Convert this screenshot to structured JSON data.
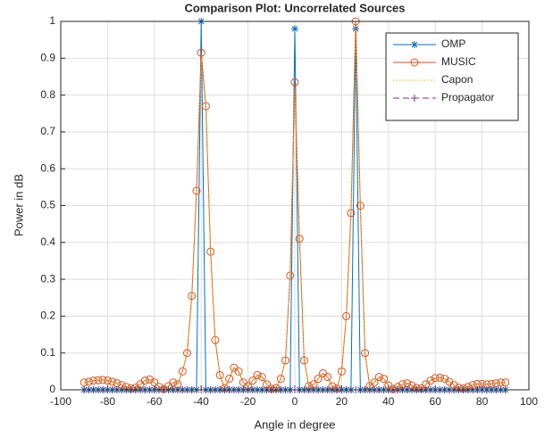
{
  "chart_data": {
    "type": "line",
    "title": "Comparison Plot: Uncorrelated Sources",
    "x_label": "Angle in degree",
    "y_label": "Power in dB",
    "x": [
      -90,
      -88,
      -86,
      -84,
      -82,
      -80,
      -78,
      -76,
      -74,
      -72,
      -70,
      -68,
      -66,
      -64,
      -62,
      -60,
      -58,
      -56,
      -54,
      -52,
      -50,
      -48,
      -46,
      -44,
      -42,
      -40,
      -38,
      -36,
      -34,
      -32,
      -30,
      -28,
      -26,
      -24,
      -22,
      -20,
      -18,
      -16,
      -14,
      -12,
      -10,
      -8,
      -6,
      -4,
      -2,
      0,
      2,
      4,
      6,
      8,
      10,
      12,
      14,
      16,
      18,
      20,
      22,
      24,
      26,
      28,
      30,
      32,
      34,
      36,
      38,
      40,
      42,
      44,
      46,
      48,
      50,
      52,
      54,
      56,
      58,
      60,
      62,
      64,
      66,
      68,
      70,
      72,
      74,
      76,
      78,
      80,
      82,
      84,
      86,
      88,
      90
    ],
    "series": [
      {
        "name": "OMP",
        "color": "#0072BD",
        "marker": "star",
        "linestyle": "solid",
        "values": [
          0,
          0,
          0,
          0,
          0,
          0,
          0,
          0,
          0,
          0,
          0,
          0,
          0,
          0,
          0,
          0,
          0,
          0,
          0,
          0,
          0,
          0,
          0,
          0,
          0,
          1,
          0,
          0,
          0,
          0,
          0,
          0,
          0,
          0,
          0,
          0,
          0,
          0,
          0,
          0,
          0,
          0,
          0,
          0,
          0,
          0.98,
          0,
          0,
          0,
          0,
          0,
          0,
          0,
          0,
          0,
          0,
          0,
          0,
          0.98,
          0,
          0,
          0,
          0,
          0,
          0,
          0,
          0,
          0,
          0,
          0,
          0,
          0,
          0,
          0,
          0,
          0,
          0,
          0,
          0,
          0,
          0,
          0,
          0,
          0,
          0,
          0,
          0,
          0,
          0,
          0,
          0
        ]
      },
      {
        "name": "MUSIC",
        "color": "#D95319",
        "marker": "circle",
        "linestyle": "solid",
        "values": [
          0.02,
          0.022,
          0.025,
          0.026,
          0.027,
          0.025,
          0.022,
          0.018,
          0.013,
          0.008,
          0.004,
          0.006,
          0.015,
          0.025,
          0.028,
          0.02,
          0.008,
          0.002,
          0.01,
          0.02,
          0.015,
          0.05,
          0.1,
          0.255,
          0.54,
          0.915,
          0.77,
          0.375,
          0.135,
          0.04,
          0.005,
          0.03,
          0.06,
          0.05,
          0.02,
          0.01,
          0.025,
          0.04,
          0.035,
          0.015,
          0.003,
          0.005,
          0.03,
          0.08,
          0.31,
          0.835,
          0.41,
          0.08,
          0.01,
          0.015,
          0.03,
          0.045,
          0.035,
          0.01,
          0.004,
          0.05,
          0.2,
          0.48,
          1.0,
          0.5,
          0.1,
          0.01,
          0.02,
          0.035,
          0.03,
          0.012,
          0.002,
          0.008,
          0.015,
          0.018,
          0.012,
          0.005,
          0.004,
          0.015,
          0.025,
          0.032,
          0.033,
          0.03,
          0.022,
          0.013,
          0.006,
          0.004,
          0.008,
          0.013,
          0.016,
          0.016,
          0.015,
          0.016,
          0.018,
          0.02,
          0.02
        ]
      },
      {
        "name": "Capon",
        "color": "#EDB120",
        "marker": "none",
        "linestyle": "dotted",
        "values": [
          0.02,
          0.022,
          0.025,
          0.026,
          0.027,
          0.025,
          0.022,
          0.018,
          0.013,
          0.008,
          0.004,
          0.006,
          0.015,
          0.025,
          0.028,
          0.02,
          0.008,
          0.002,
          0.01,
          0.02,
          0.015,
          0.05,
          0.1,
          0.25,
          0.53,
          0.9,
          0.76,
          0.37,
          0.13,
          0.04,
          0.005,
          0.03,
          0.06,
          0.05,
          0.02,
          0.01,
          0.025,
          0.04,
          0.035,
          0.015,
          0.003,
          0.005,
          0.03,
          0.08,
          0.3,
          0.82,
          0.4,
          0.08,
          0.01,
          0.015,
          0.03,
          0.045,
          0.035,
          0.01,
          0.004,
          0.05,
          0.2,
          0.47,
          0.98,
          0.49,
          0.1,
          0.01,
          0.02,
          0.035,
          0.03,
          0.012,
          0.002,
          0.008,
          0.015,
          0.018,
          0.012,
          0.005,
          0.004,
          0.015,
          0.025,
          0.032,
          0.033,
          0.03,
          0.022,
          0.013,
          0.006,
          0.004,
          0.008,
          0.013,
          0.016,
          0.016,
          0.015,
          0.016,
          0.018,
          0.02,
          0.02
        ]
      },
      {
        "name": "Propagator",
        "color": "#7E2F8E",
        "marker": "plus",
        "linestyle": "dashed",
        "values": [
          0,
          0,
          0,
          0,
          0,
          0,
          0,
          0,
          0,
          0,
          0,
          0,
          0,
          0,
          0,
          0,
          0,
          0,
          0,
          0,
          0,
          0,
          0,
          0,
          0,
          0,
          0,
          0,
          0,
          0,
          0,
          0,
          0,
          0,
          0,
          0,
          0,
          0,
          0,
          0,
          0,
          0,
          0,
          0,
          0,
          0,
          0,
          0,
          0,
          0,
          0,
          0,
          0,
          0,
          0,
          0,
          0,
          0,
          0,
          0,
          0,
          0,
          0,
          0,
          0,
          0,
          0,
          0,
          0,
          0,
          0,
          0,
          0,
          0,
          0,
          0,
          0,
          0,
          0,
          0,
          0,
          0,
          0,
          0,
          0,
          0,
          0,
          0,
          0,
          0,
          0
        ]
      }
    ],
    "xlim": [
      -100,
      100
    ],
    "xticks": [
      -100,
      -80,
      -60,
      -40,
      -20,
      0,
      20,
      40,
      60,
      80,
      100
    ],
    "ylim": [
      0,
      1
    ],
    "yticks": [
      0,
      0.1,
      0.2,
      0.3,
      0.4,
      0.5,
      0.6,
      0.7,
      0.8,
      0.9,
      1
    ],
    "grid": true,
    "legend": "northeast"
  }
}
